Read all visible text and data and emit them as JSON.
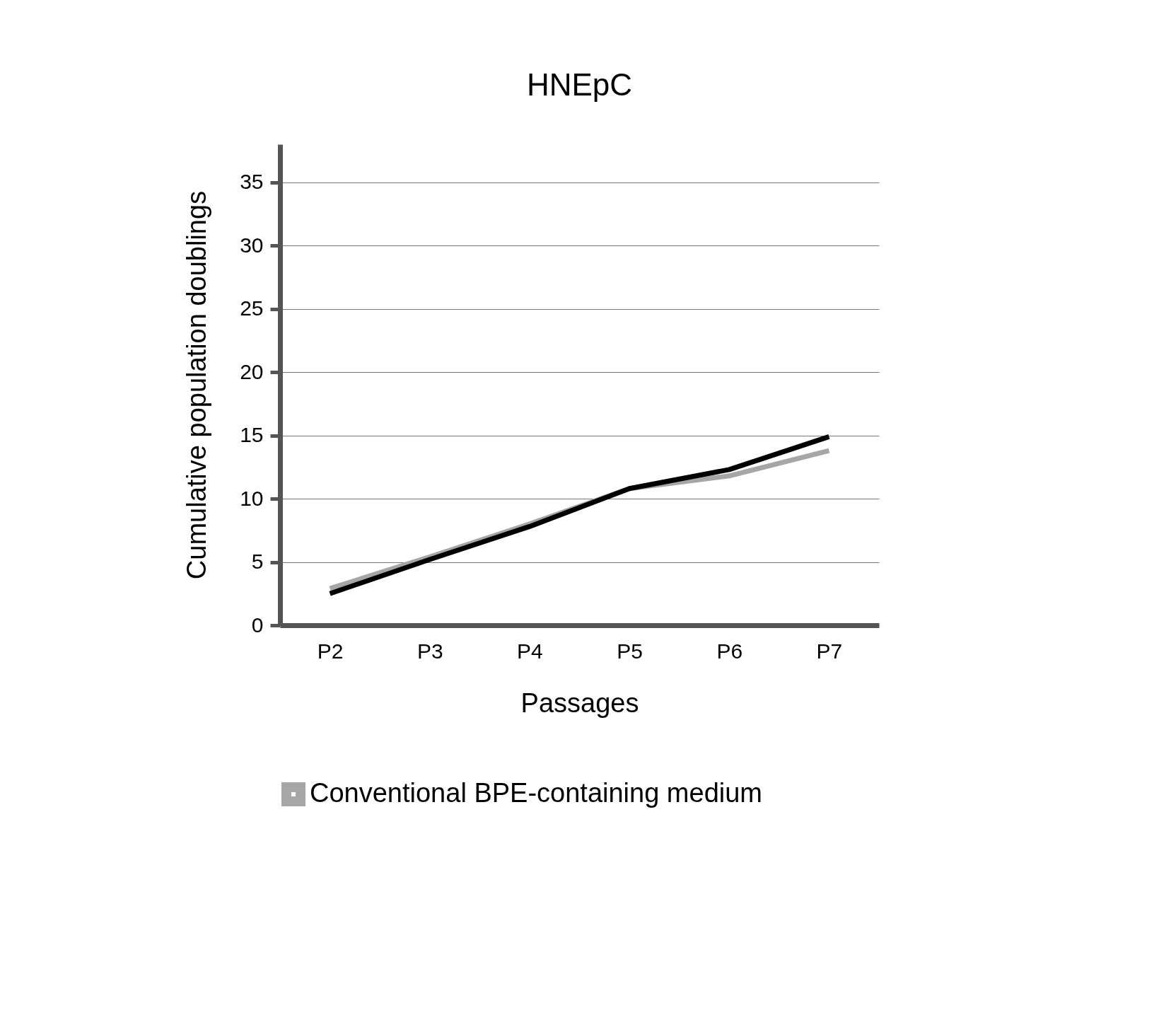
{
  "chart_data": {
    "type": "line",
    "title": "HNEpC",
    "xlabel": "Passages",
    "ylabel": "Cumulative population doublings",
    "categories": [
      "P2",
      "P3",
      "P4",
      "P5",
      "P6",
      "P7"
    ],
    "series": [
      {
        "name": "Conventional BPE-containing medium",
        "color": "#a6a6a6",
        "values": [
          2.9,
          5.4,
          8.0,
          10.8,
          11.8,
          13.8
        ]
      },
      {
        "color": "#000000",
        "values": [
          2.5,
          5.2,
          7.8,
          10.8,
          12.3,
          14.9
        ]
      }
    ],
    "ylim": [
      0,
      38
    ],
    "yticks": [
      0,
      5,
      10,
      15,
      20,
      25,
      30,
      35
    ],
    "grid": "y",
    "legend": "bottom",
    "marker": "none",
    "line_style": "solid"
  }
}
